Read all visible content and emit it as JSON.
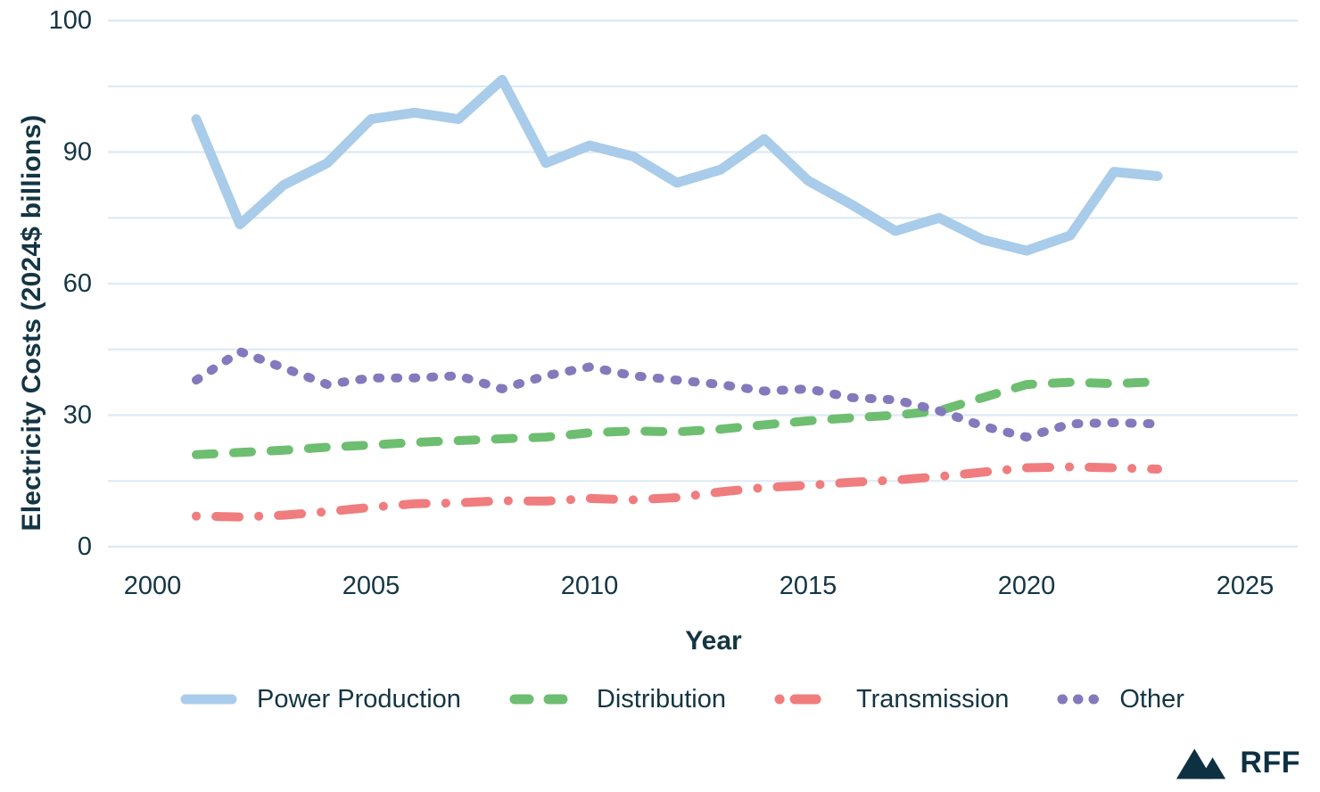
{
  "branding": {
    "logo_text": "RFF"
  },
  "colors": {
    "text": "#143544",
    "logo": "#0d3143",
    "gridline": "#dceaf5",
    "power_production": "#a8cce9",
    "distribution": "#6dbe70",
    "transmission": "#f07c7e",
    "other": "#8579bd"
  },
  "chart_data": {
    "type": "line",
    "title": "",
    "xlabel": "Year",
    "ylabel": "Electricity Costs (2024$ billions)",
    "x_ticks": [
      2000,
      2005,
      2010,
      2015,
      2020,
      2025
    ],
    "y_ticks": [
      0,
      30,
      60,
      90,
      100
    ],
    "y_gridlines": [
      0,
      15,
      30,
      45,
      60,
      75,
      90,
      95,
      100
    ],
    "x_range": [
      2000,
      2025
    ],
    "grid": "horizontal",
    "legend_position": "bottom",
    "years": [
      2001,
      2002,
      2003,
      2004,
      2005,
      2006,
      2007,
      2008,
      2009,
      2010,
      2011,
      2012,
      2013,
      2014,
      2015,
      2016,
      2017,
      2018,
      2019,
      2020,
      2021,
      2022,
      2023
    ],
    "series": [
      {
        "name": "Power Production",
        "color": "#a8cce9",
        "style": "solid",
        "values": [
          92.5,
          73.5,
          82.5,
          87.5,
          92.5,
          93,
          92.5,
          95.5,
          87.5,
          90.5,
          89,
          83,
          86,
          91,
          83.5,
          78,
          72,
          75,
          70,
          67.5,
          71,
          85.5,
          84.5
        ]
      },
      {
        "name": "Distribution",
        "color": "#6dbe70",
        "style": "dashed",
        "values": [
          21,
          21.5,
          22,
          22.7,
          23.2,
          23.8,
          24.2,
          24.6,
          25,
          26,
          26.4,
          26.2,
          26.8,
          27.8,
          28.7,
          29.4,
          30,
          31,
          34,
          37,
          37.5,
          37.2,
          37.6
        ]
      },
      {
        "name": "Transmission",
        "color": "#f07c7e",
        "style": "dash-dot",
        "values": [
          7,
          6.8,
          7.2,
          8,
          9,
          9.8,
          10,
          10.5,
          10.4,
          11,
          10.7,
          11.2,
          12.5,
          13.5,
          14,
          14.7,
          15.2,
          16,
          17,
          18,
          18.2,
          18,
          17.7
        ]
      },
      {
        "name": "Other",
        "color": "#8579bd",
        "style": "dotted",
        "values": [
          38,
          44.5,
          40.8,
          37,
          38.5,
          38.5,
          39,
          36,
          39,
          41,
          39,
          38,
          37,
          35.5,
          36,
          34,
          33.5,
          31,
          27.5,
          25,
          28,
          28.3,
          28
        ]
      }
    ]
  }
}
